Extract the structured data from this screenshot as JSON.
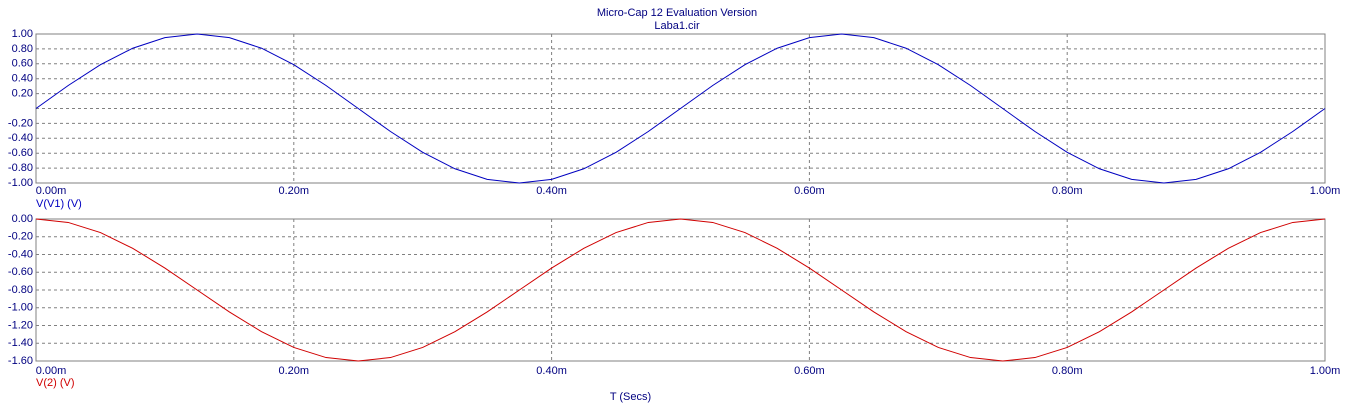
{
  "title": "Micro-Cap 12 Evaluation Version",
  "subtitle": "Laba1.cir",
  "chart_data": [
    {
      "type": "line",
      "x": [
        0,
        2.5e-05,
        5e-05,
        7.5e-05,
        0.0001,
        0.000125,
        0.00015,
        0.000175,
        0.0002,
        0.000225,
        0.00025,
        0.000275,
        0.0003,
        0.000325,
        0.00035,
        0.000375,
        0.0004,
        0.000425,
        0.00045,
        0.000475,
        0.0005,
        0.000525,
        0.00055,
        0.000575,
        0.0006,
        0.000625,
        0.00065,
        0.000675,
        0.0007,
        0.000725,
        0.00075,
        0.000775,
        0.0008,
        0.000825,
        0.00085,
        0.000875,
        0.0009,
        0.000925,
        0.00095,
        0.000975,
        0.001
      ],
      "series": [
        {
          "name": "V(V1) (V)",
          "color": "#0000c0",
          "values": [
            0,
            0.309,
            0.588,
            0.809,
            0.951,
            1,
            0.951,
            0.809,
            0.588,
            0.309,
            0,
            -0.309,
            -0.588,
            -0.809,
            -0.951,
            -1,
            -0.951,
            -0.809,
            -0.588,
            -0.309,
            0,
            0.309,
            0.588,
            0.809,
            0.951,
            1,
            0.951,
            0.809,
            0.588,
            0.309,
            0,
            -0.309,
            -0.588,
            -0.809,
            -0.951,
            -1,
            -0.951,
            -0.809,
            -0.588,
            -0.309,
            0
          ]
        }
      ],
      "xlim": [
        0,
        0.001
      ],
      "xticks": [
        {
          "value": 0,
          "label": "0.00m"
        },
        {
          "value": 0.0002,
          "label": "0.20m"
        },
        {
          "value": 0.0004,
          "label": "0.40m"
        },
        {
          "value": 0.0006,
          "label": "0.60m"
        },
        {
          "value": 0.0008,
          "label": "0.80m"
        },
        {
          "value": 0.001,
          "label": "1.00m"
        }
      ],
      "ylim": [
        -1,
        1
      ],
      "yticks": [
        {
          "value": 1,
          "label": "1.00"
        },
        {
          "value": 0.8,
          "label": "0.80"
        },
        {
          "value": 0.6,
          "label": "0.60"
        },
        {
          "value": 0.4,
          "label": "0.40"
        },
        {
          "value": 0.2,
          "label": "0.20"
        },
        {
          "value": 0,
          "label": null
        },
        {
          "value": -0.2,
          "label": "-0.20"
        },
        {
          "value": -0.4,
          "label": "-0.40"
        },
        {
          "value": -0.6,
          "label": "-0.60"
        },
        {
          "value": -0.8,
          "label": "-0.80"
        },
        {
          "value": -1,
          "label": "-1.00"
        }
      ],
      "grid": true
    },
    {
      "type": "line",
      "x": [
        0,
        2.5e-05,
        5e-05,
        7.5e-05,
        0.0001,
        0.000125,
        0.00015,
        0.000175,
        0.0002,
        0.000225,
        0.00025,
        0.000275,
        0.0003,
        0.000325,
        0.00035,
        0.000375,
        0.0004,
        0.000425,
        0.00045,
        0.000475,
        0.0005,
        0.000525,
        0.00055,
        0.000575,
        0.0006,
        0.000625,
        0.00065,
        0.000675,
        0.0007,
        0.000725,
        0.00075,
        0.000775,
        0.0008,
        0.000825,
        0.00085,
        0.000875,
        0.0009,
        0.000925,
        0.00095,
        0.000975,
        0.001
      ],
      "series": [
        {
          "name": "V(2) (V)",
          "color": "#d00000",
          "values": [
            0,
            -0.039,
            -0.153,
            -0.33,
            -0.553,
            -0.8,
            -1.047,
            -1.27,
            -1.447,
            -1.561,
            -1.6,
            -1.561,
            -1.447,
            -1.27,
            -1.047,
            -0.8,
            -0.553,
            -0.33,
            -0.153,
            -0.039,
            0,
            -0.039,
            -0.153,
            -0.33,
            -0.553,
            -0.8,
            -1.047,
            -1.27,
            -1.447,
            -1.561,
            -1.6,
            -1.561,
            -1.447,
            -1.27,
            -1.047,
            -0.8,
            -0.553,
            -0.33,
            -0.153,
            -0.039,
            0
          ]
        }
      ],
      "xlabel": "T (Secs)",
      "xlim": [
        0,
        0.001
      ],
      "xticks": [
        {
          "value": 0,
          "label": "0.00m"
        },
        {
          "value": 0.0002,
          "label": "0.20m"
        },
        {
          "value": 0.0004,
          "label": "0.40m"
        },
        {
          "value": 0.0006,
          "label": "0.60m"
        },
        {
          "value": 0.0008,
          "label": "0.80m"
        },
        {
          "value": 0.001,
          "label": "1.00m"
        }
      ],
      "ylim": [
        -1.6,
        0
      ],
      "yticks": [
        {
          "value": 0,
          "label": "0.00"
        },
        {
          "value": -0.2,
          "label": "-0.20"
        },
        {
          "value": -0.4,
          "label": "-0.40"
        },
        {
          "value": -0.6,
          "label": "-0.60"
        },
        {
          "value": -0.8,
          "label": "-0.80"
        },
        {
          "value": -1,
          "label": "-1.00"
        },
        {
          "value": -1.2,
          "label": "-1.20"
        },
        {
          "value": -1.4,
          "label": "-1.40"
        },
        {
          "value": -1.6,
          "label": "-1.60"
        }
      ],
      "grid": true
    }
  ]
}
